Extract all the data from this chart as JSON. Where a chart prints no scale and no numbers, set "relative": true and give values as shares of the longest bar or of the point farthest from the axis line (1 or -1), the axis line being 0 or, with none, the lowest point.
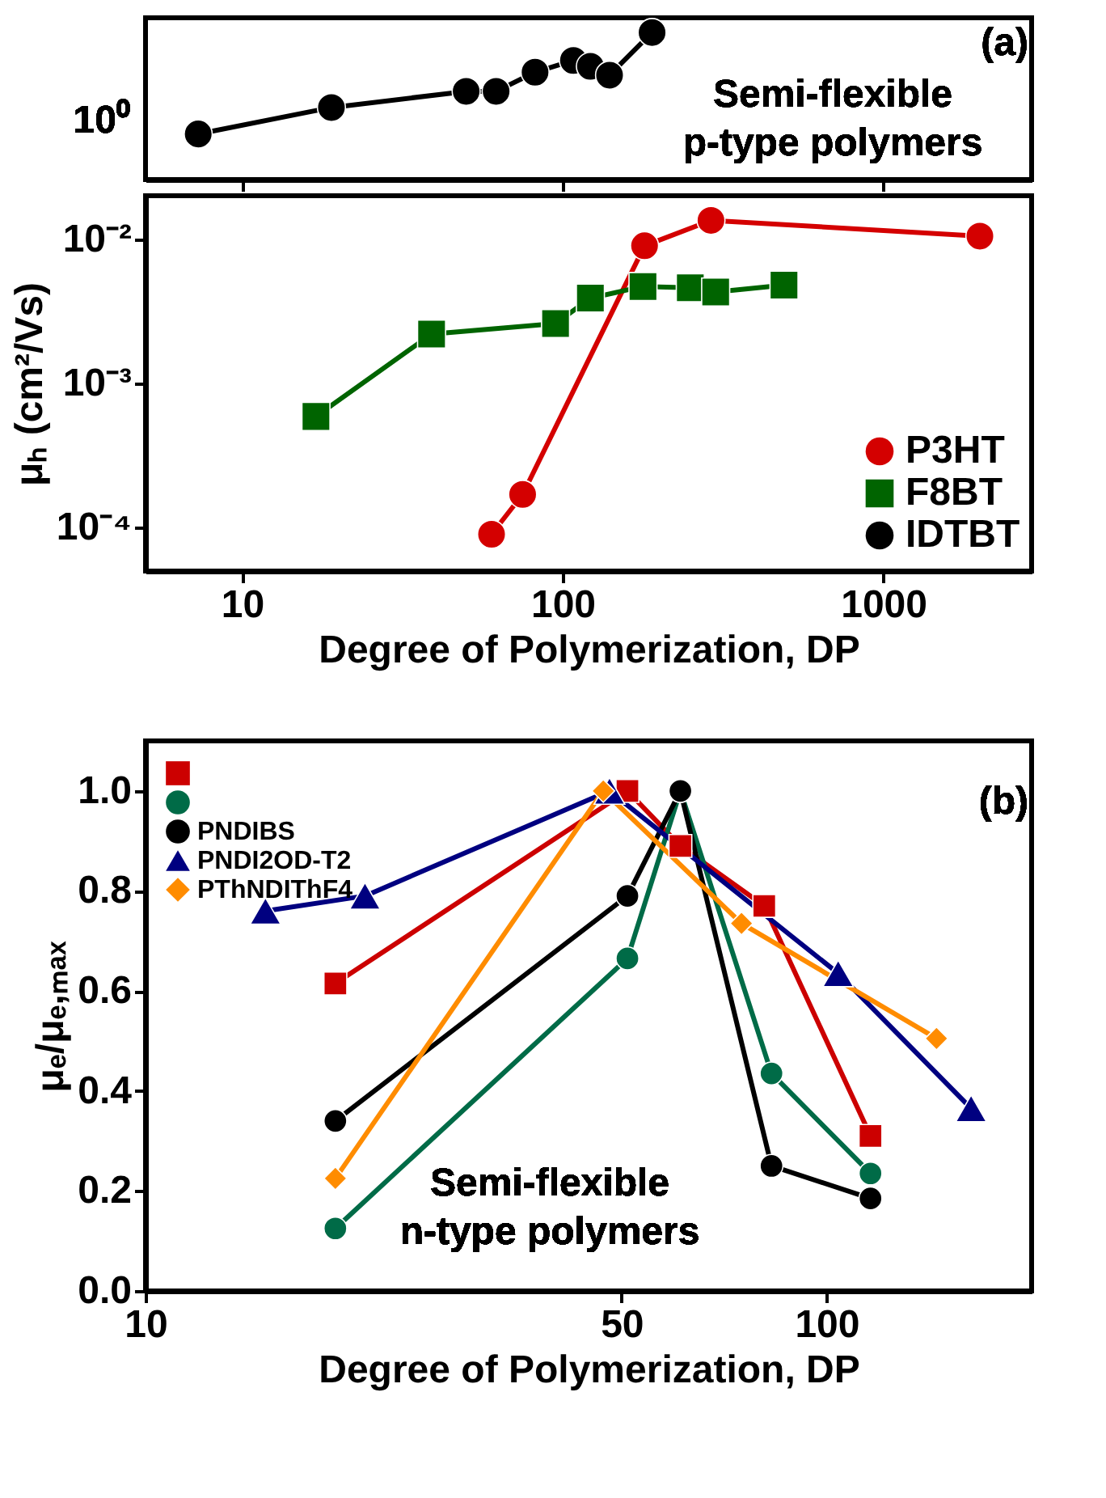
{
  "chart_data": [
    {
      "type": "line",
      "x": [
        7.3,
        19,
        50,
        62,
        82,
        108,
        122,
        140,
        190
      ],
      "xlim": [
        5,
        2900
      ],
      "xticks": [
        10,
        100,
        1000
      ],
      "relative": true,
      "log": "x",
      "tick_labels": false,
      "legend": "bottom right",
      "series": [
        {
          "name": "IDTBT",
          "color": "#000000",
          "marker": "circle",
          "values": [
            0.31,
            0.49,
            0.6,
            0.6,
            0.73,
            0.81,
            0.77,
            0.71,
            1
          ]
        }
      ],
      "annotations": [
        "(a)",
        "Semi-flexible",
        "p-type polymers",
        "10⁰"
      ]
    },
    {
      "type": "line",
      "xlim": [
        5,
        2900
      ],
      "xticks": [
        10,
        100,
        1000
      ],
      "ylim": [
        5e-05,
        0.02
      ],
      "yticks": [
        {
          "value": 0.0001,
          "label": "10⁻⁴"
        },
        {
          "value": 0.001,
          "label": "10⁻³"
        },
        {
          "value": 0.01,
          "label": "10⁻²"
        }
      ],
      "log": "xy",
      "xlabel": "Degree of Polymerization, DP",
      "ylabel": "μₕ (cm²/Vs)",
      "legend": "bottom right",
      "series": [
        {
          "name": "P3HT",
          "color": "#d40000",
          "marker": "circle",
          "x": [
            60,
            75,
            180,
            290,
            2000
          ],
          "values": [
            9e-05,
            0.00017,
            0.009,
            0.0135,
            0.0105
          ]
        },
        {
          "name": "F8BT",
          "color": "#006400",
          "marker": "square",
          "x": [
            17,
            39,
            95,
            122,
            178,
            250,
            300,
            490
          ],
          "values": [
            0.00059,
            0.0022,
            0.0026,
            0.0039,
            0.0047,
            0.0046,
            0.0043,
            0.0048
          ]
        }
      ]
    },
    {
      "type": "line",
      "xlim": [
        10,
        200
      ],
      "xticks": [
        10,
        50,
        100
      ],
      "ylim": [
        0,
        1.1
      ],
      "yticks": [
        {
          "value": 0,
          "label": "0.0"
        },
        {
          "value": 0.2,
          "label": "0.2"
        },
        {
          "value": 0.4,
          "label": "0.4"
        },
        {
          "value": 0.6,
          "label": "0.6"
        },
        {
          "value": 0.8,
          "label": "0.8"
        },
        {
          "value": 1,
          "label": "1.0"
        }
      ],
      "log": "x",
      "xlabel": "Degree of Polymerization, DP",
      "ylabel": "μₑ/μₑ,ₘₐₓ",
      "legend": "top left",
      "series": [
        {
          "color": "#cc0000",
          "marker": "square",
          "x": [
            19,
            51,
            61,
            81,
            116
          ],
          "values": [
            0.615,
            1.0,
            0.89,
            0.77,
            0.31
          ]
        },
        {
          "color": "#006b47",
          "marker": "circle",
          "x": [
            19,
            51,
            61,
            83,
            116
          ],
          "values": [
            0.125,
            0.665,
            1.0,
            0.435,
            0.235
          ]
        },
        {
          "name": "PNDIBS",
          "color": "#000000",
          "marker": "circle",
          "x": [
            19,
            51,
            61,
            83,
            116
          ],
          "values": [
            0.34,
            0.79,
            1.0,
            0.25,
            0.185
          ]
        },
        {
          "name": "PNDI2OD-T2",
          "color": "#000080",
          "marker": "triangle",
          "x": [
            15,
            21,
            48,
            104,
            163
          ],
          "values": [
            0.76,
            0.79,
            1.0,
            0.635,
            0.365
          ]
        },
        {
          "name": "PThNDIThF4",
          "color": "#ff8c00",
          "marker": "diamond",
          "x": [
            19,
            47,
            75,
            145
          ],
          "values": [
            0.225,
            1.0,
            0.735,
            0.505
          ]
        }
      ],
      "annotations": [
        "(b)",
        "Semi-flexible",
        "n-type polymers"
      ]
    }
  ]
}
